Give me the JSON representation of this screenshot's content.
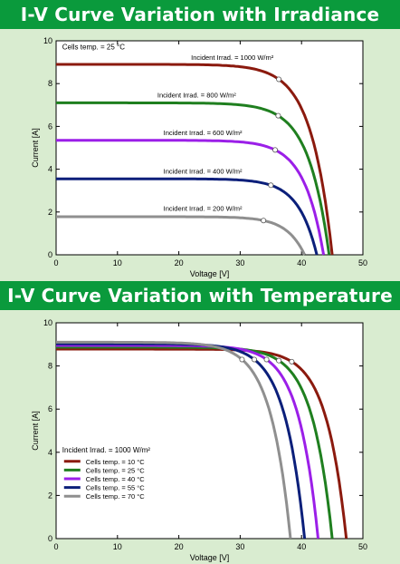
{
  "banners": {
    "top": "I-V Curve Variation with Irradiance",
    "bottom": "I-V Curve Variation with Temperature"
  },
  "chart_data": [
    {
      "type": "line",
      "xlabel": "Voltage [V]",
      "ylabel": "Current [A]",
      "xlim": [
        0,
        50
      ],
      "ylim": [
        0,
        10
      ],
      "xticks": [
        0,
        10,
        20,
        30,
        40,
        50
      ],
      "yticks": [
        0,
        2,
        4,
        6,
        8,
        10
      ],
      "annotations": [
        {
          "text": "Cells temp.  = 25 °C",
          "x": 1,
          "y": 9.6
        }
      ],
      "series": [
        {
          "name": "Incident Irrad. = 1000 W/m²",
          "color": "#8b1a0e",
          "isc": 8.9,
          "voc": 45.0,
          "mpp": [
            36.3,
            8.2
          ],
          "label_pos": [
            22,
            9.1
          ]
        },
        {
          "name": "Incident Irrad. = 800 W/m²",
          "color": "#1f7f1f",
          "isc": 7.1,
          "voc": 44.5,
          "mpp": [
            36.2,
            6.5
          ],
          "label_pos": [
            16.5,
            7.35
          ]
        },
        {
          "name": "Incident Irrad. = 600 W/m²",
          "color": "#9b1fe8",
          "isc": 5.35,
          "voc": 43.6,
          "mpp": [
            35.7,
            4.9
          ],
          "label_pos": [
            17.5,
            5.6
          ]
        },
        {
          "name": "Incident Irrad. = 400 W/m²",
          "color": "#0b1f7a",
          "isc": 3.55,
          "voc": 42.5,
          "mpp": [
            35.0,
            3.25
          ],
          "label_pos": [
            17.5,
            3.8
          ]
        },
        {
          "name": "Incident Irrad. = 200 W/m²",
          "color": "#8f8f8f",
          "isc": 1.78,
          "voc": 40.5,
          "mpp": [
            33.8,
            1.6
          ],
          "label_pos": [
            17.5,
            2.05
          ]
        }
      ]
    },
    {
      "type": "line",
      "xlabel": "Voltage [V]",
      "ylabel": "Current [A]",
      "xlim": [
        0,
        50
      ],
      "ylim": [
        0,
        10
      ],
      "xticks": [
        0,
        10,
        20,
        30,
        40,
        50
      ],
      "yticks": [
        0,
        2,
        4,
        6,
        8,
        10
      ],
      "legend_title": "Incident Irrad. = 1000 W/m²",
      "legend_position": "bottom-left",
      "series": [
        {
          "name": "Cells temp.  = 10 °C",
          "color": "#8b1a0e",
          "isc": 8.78,
          "voc": 47.3,
          "mpp": [
            38.4,
            8.2
          ]
        },
        {
          "name": "Cells temp.  = 25 °C",
          "color": "#1f7f1f",
          "isc": 8.87,
          "voc": 45.0,
          "mpp": [
            36.3,
            8.25
          ]
        },
        {
          "name": "Cells temp.  = 40 °C",
          "color": "#9b1fe8",
          "isc": 8.95,
          "voc": 42.7,
          "mpp": [
            34.3,
            8.3
          ]
        },
        {
          "name": "Cells temp.  = 55 °C",
          "color": "#0b1f7a",
          "isc": 9.03,
          "voc": 40.5,
          "mpp": [
            32.3,
            8.3
          ]
        },
        {
          "name": "Cells temp.  = 70 °C",
          "color": "#8f8f8f",
          "isc": 9.1,
          "voc": 38.2,
          "mpp": [
            30.3,
            8.3
          ]
        }
      ]
    }
  ]
}
